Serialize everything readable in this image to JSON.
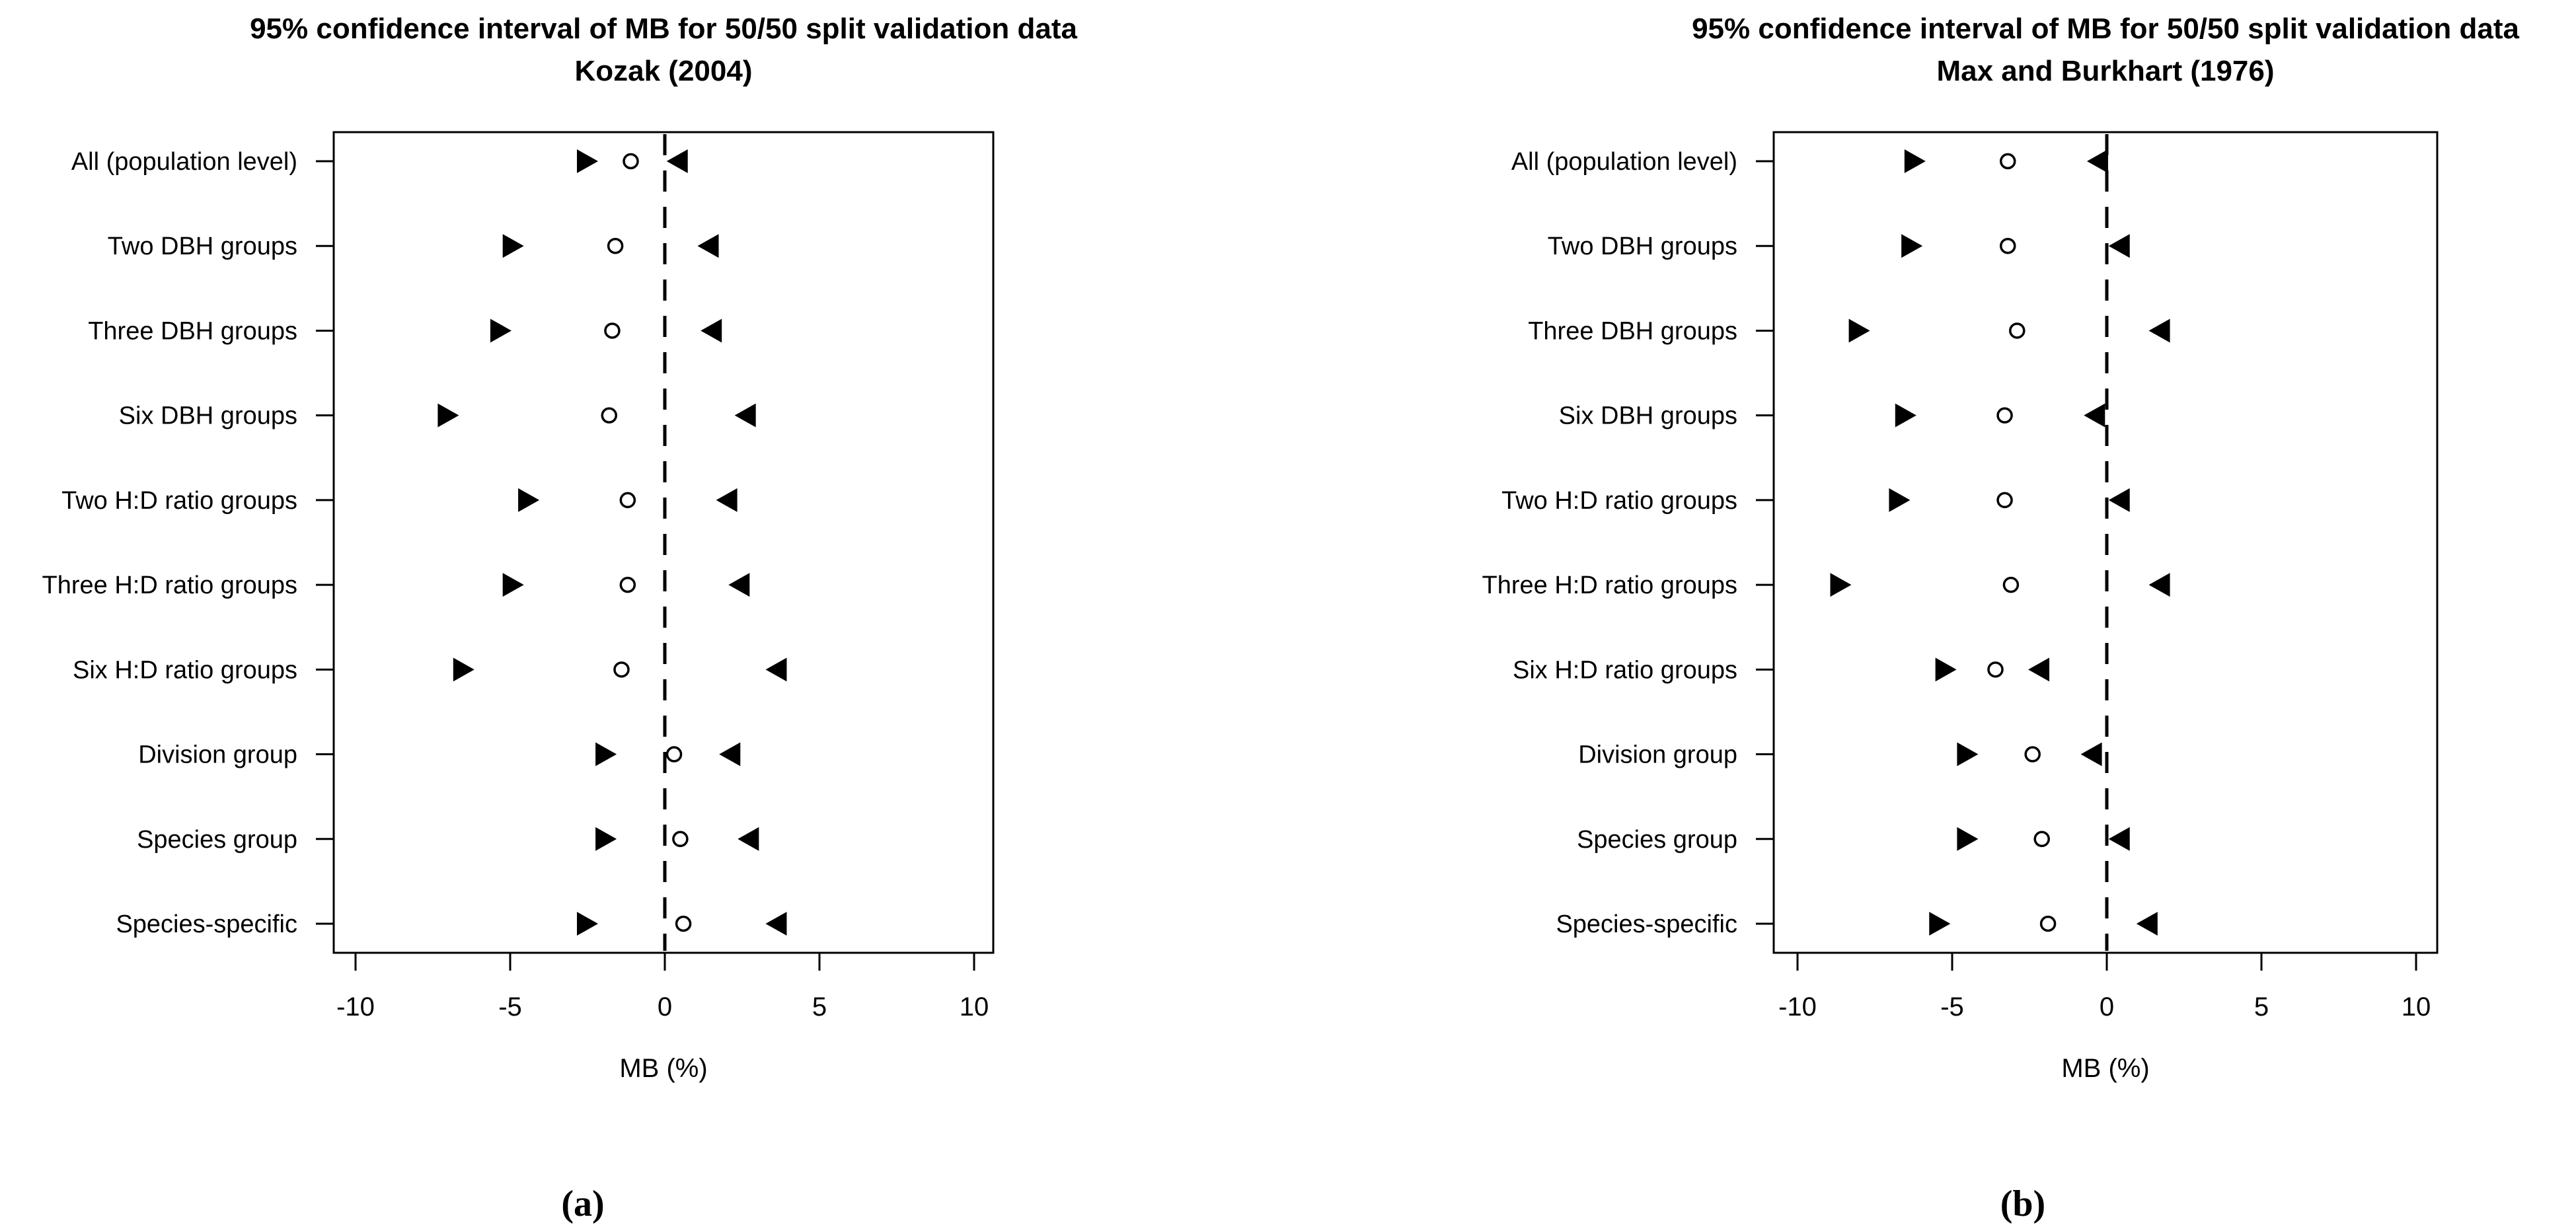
{
  "figure": {
    "background": "#ffffff",
    "ink_color": "#000000"
  },
  "chart_data": [
    {
      "type": "scatter",
      "subtype": "confidence-interval-dot-plot",
      "title_line1": "95% confidence interval of MB for 50/50 split validation data",
      "title_line2": "Kozak (2004)",
      "xlabel": "MB (%)",
      "caption": "(a)",
      "xticks": [
        -10,
        -5,
        0,
        5,
        10
      ],
      "xtick_labels": [
        "-10",
        "-5",
        "0",
        "5",
        "10"
      ],
      "xlim": [
        -10.7,
        10.6
      ],
      "zero_reference_line": 0,
      "grid": "off",
      "legend": "none",
      "categories": [
        "All (population level)",
        "Two DBH groups",
        "Three DBH groups",
        "Six DBH groups",
        "Two H:D ratio groups",
        "Three H:D ratio groups",
        "Six H:D ratio groups",
        "Division group",
        "Species group",
        "Species-specific"
      ],
      "series": [
        {
          "name": "lower-bound",
          "marker": "right-triangle",
          "values": [
            -2.5,
            -4.9,
            -5.3,
            -7.0,
            -4.4,
            -4.9,
            -6.5,
            -1.9,
            -1.9,
            -2.5
          ]
        },
        {
          "name": "mean",
          "marker": "open-circle",
          "values": [
            -1.1,
            -1.6,
            -1.7,
            -1.8,
            -1.2,
            -1.2,
            -1.4,
            0.3,
            0.5,
            0.6
          ]
        },
        {
          "name": "upper-bound",
          "marker": "left-triangle",
          "values": [
            0.4,
            1.4,
            1.5,
            2.6,
            2.0,
            2.4,
            3.6,
            2.1,
            2.7,
            3.6
          ]
        }
      ]
    },
    {
      "type": "scatter",
      "subtype": "confidence-interval-dot-plot",
      "title_line1": "95% confidence interval of MB for 50/50 split validation data",
      "title_line2": "Max and Burkhart (1976)",
      "xlabel": "MB (%)",
      "caption": "(b)",
      "xticks": [
        -10,
        -5,
        0,
        5,
        10
      ],
      "xtick_labels": [
        "-10",
        "-5",
        "0",
        "5",
        "10"
      ],
      "xlim": [
        -10.8,
        10.7
      ],
      "zero_reference_line": 0,
      "grid": "off",
      "legend": "none",
      "categories": [
        "All (population level)",
        "Two DBH groups",
        "Three DBH groups",
        "Six DBH groups",
        "Two H:D ratio groups",
        "Three H:D ratio groups",
        "Six H:D ratio groups",
        "Division group",
        "Species group",
        "Species-specific"
      ],
      "series": [
        {
          "name": "lower-bound",
          "marker": "right-triangle",
          "values": [
            -6.2,
            -6.3,
            -8.0,
            -6.5,
            -6.7,
            -8.6,
            -5.2,
            -4.5,
            -4.5,
            -5.4
          ]
        },
        {
          "name": "mean",
          "marker": "open-circle",
          "values": [
            -3.2,
            -3.2,
            -2.9,
            -3.3,
            -3.3,
            -3.1,
            -3.6,
            -2.4,
            -2.1,
            -1.9
          ]
        },
        {
          "name": "upper-bound",
          "marker": "left-triangle",
          "values": [
            -0.3,
            0.4,
            1.7,
            -0.4,
            0.4,
            1.7,
            -2.2,
            -0.5,
            0.4,
            1.3
          ]
        }
      ]
    }
  ]
}
